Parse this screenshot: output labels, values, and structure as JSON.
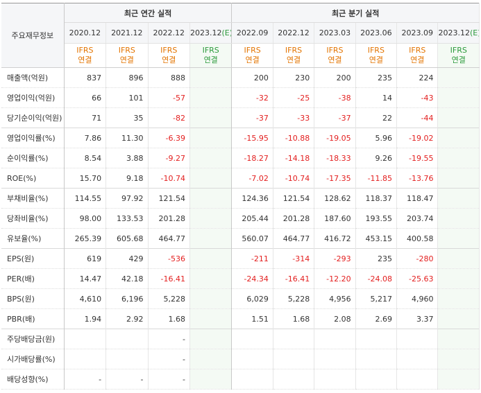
{
  "header": {
    "corner_label": "주요재무정보",
    "annual_group": "최근 연간 실적",
    "quarter_group": "최근 분기 실적",
    "annual_periods": [
      "2020.12",
      "2021.12",
      "2022.12",
      "2023.12(E)"
    ],
    "quarter_periods": [
      "2022.09",
      "2022.12",
      "2023.03",
      "2023.06",
      "2023.09",
      "2023.12(E)"
    ],
    "basis_line1": "IFRS",
    "basis_line2": "연결"
  },
  "colors": {
    "negative": "#e31e1e",
    "basis": "#e37400",
    "estimate": "#2b9a3b"
  },
  "rows": [
    {
      "label": "매출액(억원)",
      "values": [
        "837",
        "896",
        "888",
        "",
        "200",
        "230",
        "200",
        "235",
        "224",
        ""
      ]
    },
    {
      "label": "영업이익(억원)",
      "values": [
        "66",
        "101",
        "-57",
        "",
        "-32",
        "-25",
        "-38",
        "14",
        "-43",
        ""
      ]
    },
    {
      "label": "당기순이익(억원)",
      "values": [
        "71",
        "35",
        "-82",
        "",
        "-37",
        "-33",
        "-37",
        "22",
        "-44",
        ""
      ]
    },
    {
      "label": "영업이익률(%)",
      "values": [
        "7.86",
        "11.30",
        "-6.39",
        "",
        "-15.95",
        "-10.88",
        "-19.05",
        "5.96",
        "-19.02",
        ""
      ]
    },
    {
      "label": "순이익률(%)",
      "values": [
        "8.54",
        "3.88",
        "-9.27",
        "",
        "-18.27",
        "-14.18",
        "-18.33",
        "9.26",
        "-19.55",
        ""
      ]
    },
    {
      "label": "ROE(%)",
      "values": [
        "15.70",
        "9.18",
        "-10.74",
        "",
        "-7.02",
        "-10.74",
        "-17.35",
        "-11.85",
        "-13.76",
        ""
      ]
    },
    {
      "label": "부채비율(%)",
      "values": [
        "114.55",
        "97.92",
        "121.54",
        "",
        "124.36",
        "121.54",
        "128.62",
        "118.37",
        "118.47",
        ""
      ]
    },
    {
      "label": "당좌비율(%)",
      "values": [
        "98.00",
        "133.53",
        "201.28",
        "",
        "205.44",
        "201.28",
        "187.60",
        "193.55",
        "203.74",
        ""
      ]
    },
    {
      "label": "유보율(%)",
      "values": [
        "265.39",
        "605.68",
        "464.77",
        "",
        "560.07",
        "464.77",
        "416.72",
        "453.15",
        "400.58",
        ""
      ]
    },
    {
      "label": "EPS(원)",
      "values": [
        "619",
        "429",
        "-536",
        "",
        "-211",
        "-314",
        "-293",
        "235",
        "-280",
        ""
      ]
    },
    {
      "label": "PER(배)",
      "values": [
        "14.47",
        "42.18",
        "-16.41",
        "",
        "-24.34",
        "-16.41",
        "-12.20",
        "-24.08",
        "-25.63",
        ""
      ]
    },
    {
      "label": "BPS(원)",
      "values": [
        "4,610",
        "6,196",
        "5,228",
        "",
        "6,029",
        "5,228",
        "4,956",
        "5,217",
        "4,960",
        ""
      ]
    },
    {
      "label": "PBR(배)",
      "values": [
        "1.94",
        "2.92",
        "1.68",
        "",
        "1.51",
        "1.68",
        "2.08",
        "2.69",
        "3.37",
        ""
      ]
    },
    {
      "label": "주당배당금(원)",
      "values": [
        "",
        "",
        "-",
        "",
        "",
        "",
        "",
        "",
        "",
        ""
      ]
    },
    {
      "label": "시가배당률(%)",
      "values": [
        "",
        "",
        "-",
        "",
        "",
        "",
        "",
        "",
        "",
        ""
      ]
    },
    {
      "label": "배당성향(%)",
      "values": [
        "-",
        "-",
        "-",
        "",
        "",
        "",
        "",
        "",
        "",
        ""
      ]
    }
  ]
}
